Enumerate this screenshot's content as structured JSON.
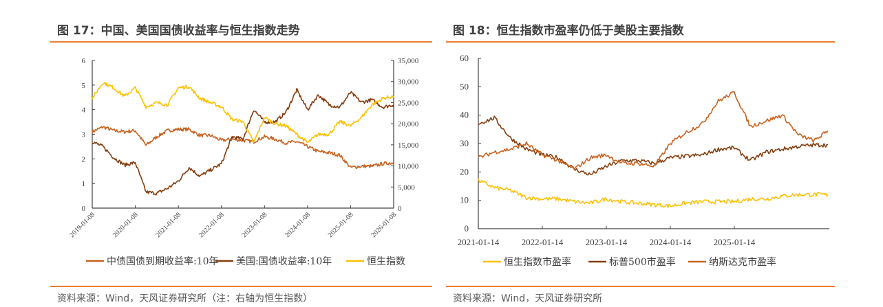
{
  "left": {
    "title": "图 17：中国、美国国债收益率与恒生指数走势",
    "source": "资料来源：Wind，天风证券研究所（注：右轴为恒生指数）"
  },
  "right": {
    "title": "图 18：恒生指数市盈率仍低于美股主要指数",
    "source": "资料来源：Wind，天风证券研究所"
  },
  "chart_data": [
    {
      "type": "line",
      "title": "",
      "ylim": [
        0,
        6
      ],
      "y2lim": [
        0,
        35000
      ],
      "yticks": [
        "0",
        "1",
        "2",
        "3",
        "4",
        "5",
        "6"
      ],
      "y2ticks": [
        "0",
        "5,000",
        "10,000",
        "15,000",
        "20,000",
        "25,000",
        "30,000",
        "35,000"
      ],
      "xticks": [
        "2019-01-08",
        "2020-01-08",
        "2021-01-08",
        "2022-01-08",
        "2023-01-08",
        "2024-01-08",
        "2025-01-08",
        "2026-01-08"
      ],
      "legend_position": "bottom",
      "grid": false,
      "x": [
        "2019-01-08",
        "2019-04-08",
        "2019-07-08",
        "2019-10-08",
        "2020-01-08",
        "2020-04-08",
        "2020-07-08",
        "2020-10-08",
        "2021-01-08",
        "2021-04-08",
        "2021-07-08",
        "2021-10-08",
        "2022-01-08",
        "2022-04-08",
        "2022-07-08",
        "2022-10-08",
        "2023-01-08",
        "2023-04-08",
        "2023-07-08",
        "2023-10-08",
        "2024-01-08",
        "2024-04-08",
        "2024-07-08",
        "2024-10-08",
        "2025-01-08",
        "2025-04-08",
        "2025-07-08",
        "2025-10-08",
        "2026-01-08"
      ],
      "series": [
        {
          "name": "中债国债到期收益率:10年",
          "axis": "left",
          "color": "#C8611E",
          "values": [
            3.1,
            3.3,
            3.15,
            3.1,
            3.15,
            2.55,
            2.9,
            3.15,
            3.2,
            3.2,
            2.95,
            2.95,
            2.75,
            2.8,
            2.75,
            2.7,
            2.9,
            2.8,
            2.65,
            2.7,
            2.5,
            2.3,
            2.25,
            2.15,
            1.65,
            1.7,
            1.7,
            1.8,
            1.85
          ]
        },
        {
          "name": "美国:国债收益率:10年",
          "axis": "left",
          "color": "#843C0C",
          "values": [
            2.7,
            2.5,
            2.05,
            1.75,
            1.85,
            0.65,
            0.6,
            0.8,
            1.1,
            1.65,
            1.3,
            1.55,
            1.8,
            2.9,
            2.8,
            4.0,
            3.5,
            3.5,
            3.9,
            4.8,
            4.0,
            4.6,
            4.2,
            4.1,
            4.7,
            4.3,
            4.4,
            4.1,
            4.2
          ]
        },
        {
          "name": "恒生指数",
          "axis": "right",
          "color": "#FFC000",
          "values": [
            26000,
            29800,
            28500,
            26500,
            28500,
            24000,
            25000,
            24500,
            28500,
            28800,
            26000,
            25000,
            24000,
            21000,
            20500,
            15500,
            21500,
            20000,
            19500,
            17500,
            15500,
            17500,
            17500,
            20500,
            19500,
            21500,
            24500,
            26000,
            26500
          ]
        }
      ]
    },
    {
      "type": "line",
      "title": "",
      "ylim": [
        0,
        60
      ],
      "yticks": [
        "0",
        "10",
        "20",
        "30",
        "40",
        "50",
        "60"
      ],
      "xticks": [
        "2021-01-14",
        "2022-01-14",
        "2023-01-14",
        "2024-01-14",
        "2025-01-14"
      ],
      "legend_position": "bottom",
      "grid": false,
      "x": [
        "2021-01-14",
        "2021-04-14",
        "2021-07-14",
        "2021-10-14",
        "2022-01-14",
        "2022-04-14",
        "2022-07-14",
        "2022-10-14",
        "2023-01-14",
        "2023-04-14",
        "2023-07-14",
        "2023-10-14",
        "2024-01-14",
        "2024-04-14",
        "2024-07-14",
        "2024-10-14",
        "2025-01-14",
        "2025-04-14",
        "2025-07-14",
        "2025-10-14",
        "2026-01-14",
        "2026-04-14",
        "2026-06-30"
      ],
      "series": [
        {
          "name": "恒生指数市盈率",
          "color": "#FFC000",
          "values": [
            17,
            14.5,
            13.5,
            11,
            10.5,
            10.5,
            9.5,
            9,
            10.5,
            9.5,
            9,
            8.5,
            8,
            9,
            9.5,
            9.5,
            9.5,
            10.5,
            10.5,
            11.5,
            12,
            12,
            12
          ]
        },
        {
          "name": "标普500市盈率",
          "color": "#843C0C",
          "values": [
            37,
            39,
            32,
            28,
            26,
            25,
            21,
            19,
            22,
            24,
            24,
            23,
            25,
            25.5,
            26,
            28,
            28.5,
            24,
            27,
            28,
            29,
            29.5,
            29.5
          ]
        },
        {
          "name": "纳斯达克市盈率",
          "color": "#C8611E",
          "values": [
            25,
            27,
            28,
            30,
            26,
            24,
            21,
            25,
            26,
            23,
            23,
            22,
            30,
            34,
            37,
            45,
            48,
            36,
            38,
            40,
            33,
            31,
            34.5
          ]
        }
      ]
    }
  ]
}
